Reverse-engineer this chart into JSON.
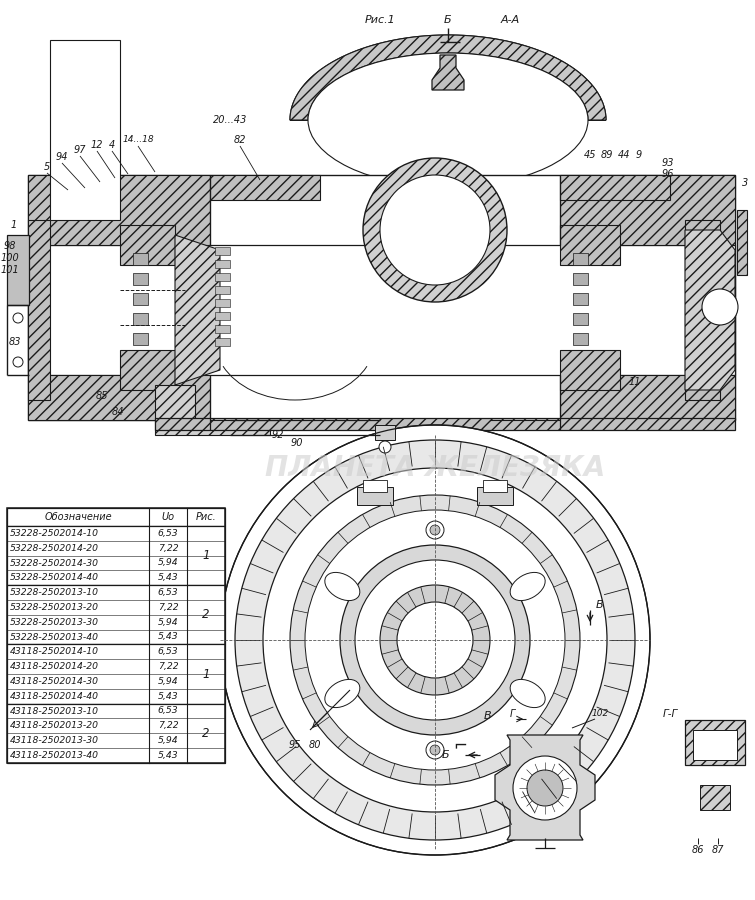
{
  "background_color": "#ffffff",
  "line_color": "#1a1a1a",
  "hatch_color": "#1a1a1a",
  "gray_fill": "#c8c8c8",
  "light_gray": "#e0e0e0",
  "white_fill": "#ffffff",
  "table_headers": [
    "Обозначение",
    "Uo",
    "Рис."
  ],
  "table_groups": [
    {
      "rows": [
        [
          "53228-2502014-10",
          "6,53",
          ""
        ],
        [
          "53228-2502014-20",
          "7,22",
          "1"
        ],
        [
          "53228-2502014-30",
          "5,94",
          ""
        ],
        [
          "53228-2502014-40",
          "5,43",
          ""
        ]
      ]
    },
    {
      "rows": [
        [
          "53228-2502013-10",
          "6,53",
          ""
        ],
        [
          "53228-2502013-20",
          "7,22",
          "2"
        ],
        [
          "53228-2502013-30",
          "5,94",
          ""
        ],
        [
          "53228-2502013-40",
          "5,43",
          ""
        ]
      ]
    },
    {
      "rows": [
        [
          "43118-2502014-10",
          "6,53",
          ""
        ],
        [
          "43118-2502014-20",
          "7,22",
          "1"
        ],
        [
          "43118-2502014-30",
          "5,94",
          ""
        ],
        [
          "43118-2502014-40",
          "5,43",
          ""
        ]
      ]
    },
    {
      "rows": [
        [
          "43118-2502013-10",
          "6,53",
          ""
        ],
        [
          "43118-2502013-20",
          "7,22",
          "2"
        ],
        [
          "43118-2502013-30",
          "5,94",
          ""
        ],
        [
          "43118-2502013-40",
          "5,43",
          ""
        ]
      ]
    }
  ],
  "watermark": "ПЛАНЕТА ЖЕЛЕЗЯКА",
  "table_font_size": 7.0
}
